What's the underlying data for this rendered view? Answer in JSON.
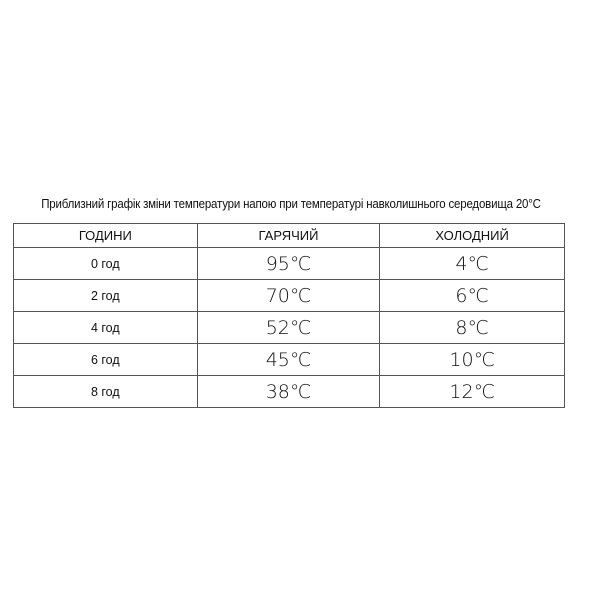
{
  "title": "Приблизний графік зміни температури напою при температурі навколишнього середовища 20°C",
  "table": {
    "headers": [
      "ГОДИНИ",
      "ГАРЯЧИЙ",
      "ХОЛОДНИЙ"
    ],
    "rows": [
      [
        "0 год",
        "95℃",
        "4℃"
      ],
      [
        "2 год",
        "70℃",
        "6℃"
      ],
      [
        "4 год",
        "52℃",
        "8℃"
      ],
      [
        "6 год",
        "45℃",
        "10℃"
      ],
      [
        "8 год",
        "38℃",
        "12℃"
      ]
    ]
  }
}
